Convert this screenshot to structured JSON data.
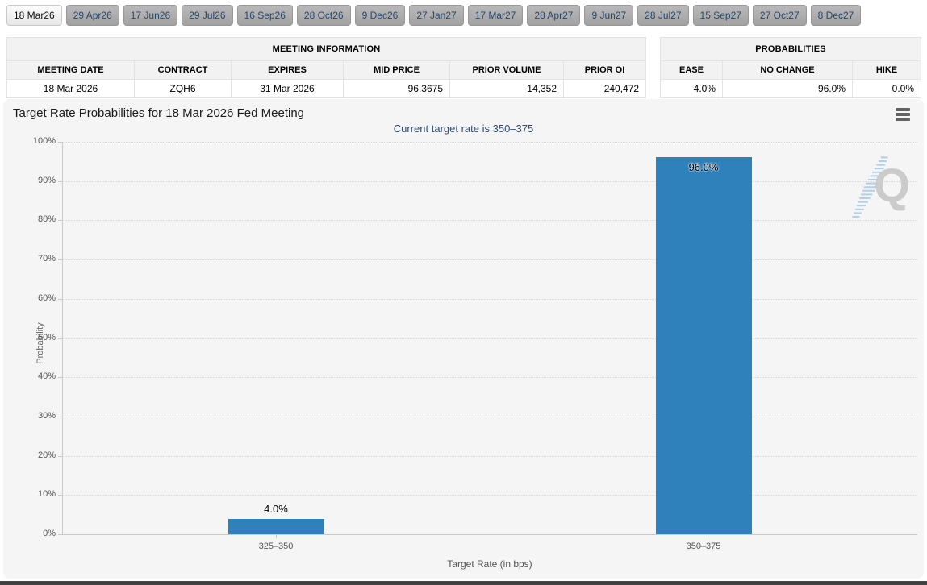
{
  "tabs": {
    "items": [
      {
        "label": "18 Mar26",
        "active": true
      },
      {
        "label": "29 Apr26",
        "active": false
      },
      {
        "label": "17 Jun26",
        "active": false
      },
      {
        "label": "29 Jul26",
        "active": false
      },
      {
        "label": "16 Sep26",
        "active": false
      },
      {
        "label": "28 Oct26",
        "active": false
      },
      {
        "label": "9 Dec26",
        "active": false
      },
      {
        "label": "27 Jan27",
        "active": false
      },
      {
        "label": "17 Mar27",
        "active": false
      },
      {
        "label": "28 Apr27",
        "active": false
      },
      {
        "label": "9 Jun27",
        "active": false
      },
      {
        "label": "28 Jul27",
        "active": false
      },
      {
        "label": "15 Sep27",
        "active": false
      },
      {
        "label": "27 Oct27",
        "active": false
      },
      {
        "label": "8 Dec27",
        "active": false
      }
    ]
  },
  "meeting_info": {
    "title": "MEETING INFORMATION",
    "headers": [
      "MEETING DATE",
      "CONTRACT",
      "EXPIRES",
      "MID PRICE",
      "PRIOR VOLUME",
      "PRIOR OI"
    ],
    "values": [
      "18 Mar 2026",
      "ZQH6",
      "31 Mar 2026",
      "96.3675",
      "14,352",
      "240,472"
    ]
  },
  "probabilities": {
    "title": "PROBABILITIES",
    "headers": [
      "EASE",
      "NO CHANGE",
      "HIKE"
    ],
    "values": [
      "4.0%",
      "96.0%",
      "0.0%"
    ]
  },
  "chart_data": {
    "type": "bar",
    "title": "Target Rate Probabilities for 18 Mar 2026 Fed Meeting",
    "subtitle": "Current target rate is 350–375",
    "categories": [
      "325–350",
      "350–375"
    ],
    "values": [
      4.0,
      96.0
    ],
    "value_labels": [
      "4.0%",
      "96.0%"
    ],
    "xlabel": "Target Rate (in bps)",
    "ylabel": "Probability",
    "ylim": [
      0,
      100
    ],
    "ytick_step": 10,
    "grid": "horizontal-dotted",
    "legend": "none",
    "bar_color": "#2f81bc",
    "watermark_letter": "Q"
  },
  "icons": {
    "menu": "hamburger-menu-icon",
    "watermark": "quikstrike-q-watermark"
  }
}
